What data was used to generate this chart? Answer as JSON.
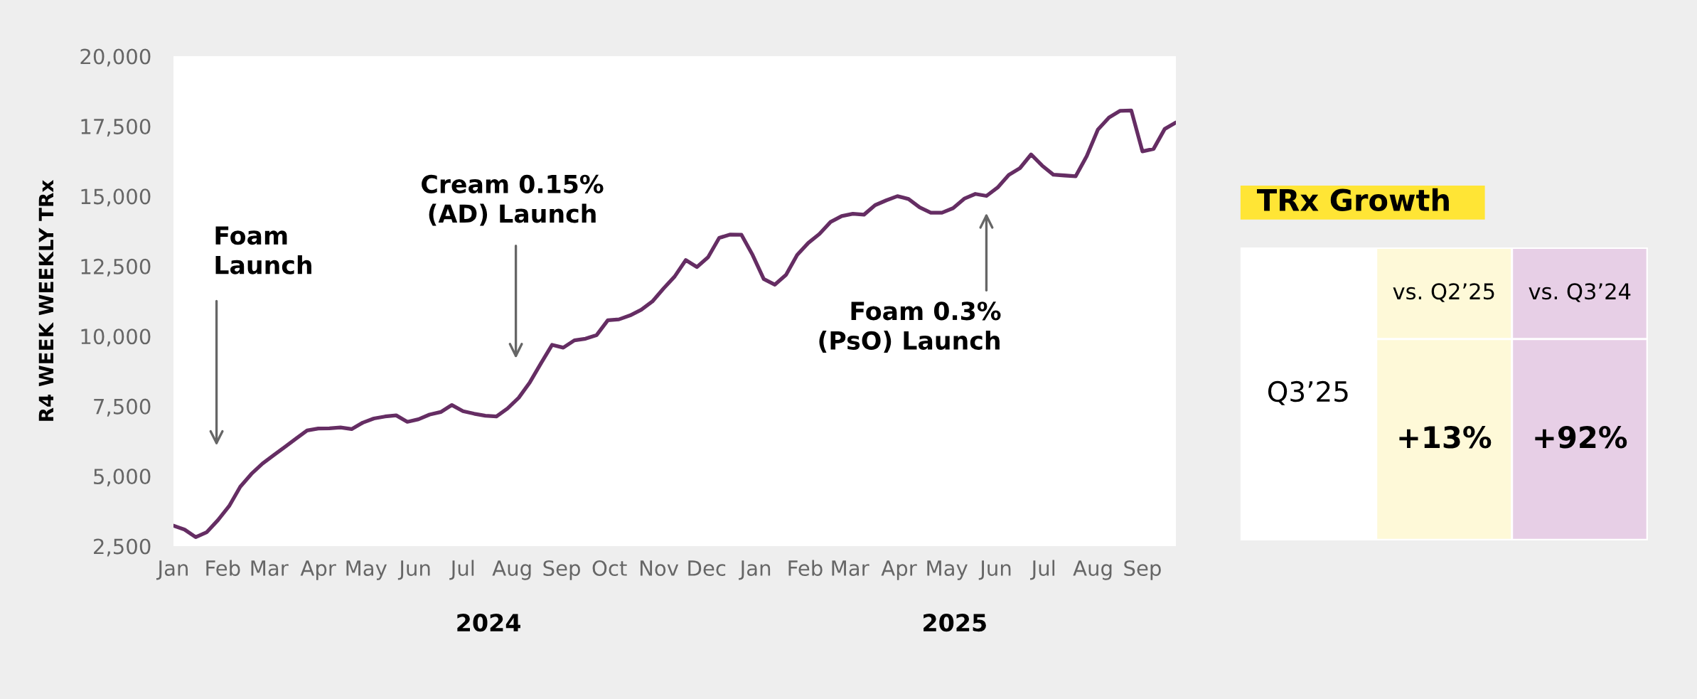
{
  "chart_data": [
    {
      "type": "line",
      "ylabel": "R4 WEEK WEEKLY TRx",
      "x": [
        "2024-01-01",
        "2024-01-08",
        "2024-01-15",
        "2024-01-22",
        "2024-01-29",
        "2024-02-05",
        "2024-02-12",
        "2024-02-19",
        "2024-02-26",
        "2024-03-04",
        "2024-03-11",
        "2024-03-18",
        "2024-03-25",
        "2024-04-01",
        "2024-04-08",
        "2024-04-15",
        "2024-04-22",
        "2024-04-29",
        "2024-05-06",
        "2024-05-13",
        "2024-05-20",
        "2024-05-27",
        "2024-06-03",
        "2024-06-10",
        "2024-06-17",
        "2024-06-24",
        "2024-07-01",
        "2024-07-08",
        "2024-07-15",
        "2024-07-22",
        "2024-07-29",
        "2024-08-05",
        "2024-08-12",
        "2024-08-19",
        "2024-08-26",
        "2024-09-02",
        "2024-09-09",
        "2024-09-16",
        "2024-09-23",
        "2024-09-30",
        "2024-10-07",
        "2024-10-14",
        "2024-10-21",
        "2024-10-28",
        "2024-11-04",
        "2024-11-11",
        "2024-11-18",
        "2024-11-25",
        "2024-12-02",
        "2024-12-09",
        "2024-12-16",
        "2024-12-23",
        "2024-12-30",
        "2025-01-06",
        "2025-01-13",
        "2025-01-20",
        "2025-01-27",
        "2025-02-03",
        "2025-02-10",
        "2025-02-17",
        "2025-02-24",
        "2025-03-03",
        "2025-03-10",
        "2025-03-17",
        "2025-03-24",
        "2025-03-31",
        "2025-04-07",
        "2025-04-14",
        "2025-04-21",
        "2025-04-28",
        "2025-05-05",
        "2025-05-12",
        "2025-05-19",
        "2025-05-26",
        "2025-06-02",
        "2025-06-09",
        "2025-06-16",
        "2025-06-23",
        "2025-06-30",
        "2025-07-07",
        "2025-07-14",
        "2025-07-21",
        "2025-07-28",
        "2025-08-04",
        "2025-08-11",
        "2025-08-18",
        "2025-08-25",
        "2025-09-01",
        "2025-09-08",
        "2025-09-15",
        "2025-09-22"
      ],
      "series": [
        {
          "color": "#652d63",
          "values": [
            3230,
            3090,
            2820,
            3000,
            3430,
            3930,
            4620,
            5080,
            5450,
            5750,
            6040,
            6340,
            6630,
            6700,
            6710,
            6740,
            6680,
            6910,
            7060,
            7130,
            7170,
            6940,
            7030,
            7200,
            7290,
            7540,
            7320,
            7230,
            7160,
            7130,
            7420,
            7800,
            8350,
            9030,
            9690,
            9590,
            9850,
            9910,
            10040,
            10570,
            10600,
            10740,
            10940,
            11240,
            11700,
            12130,
            12720,
            12470,
            12820,
            13510,
            13630,
            13620,
            12900,
            12040,
            11840,
            12190,
            12900,
            13330,
            13650,
            14080,
            14290,
            14370,
            14340,
            14680,
            14850,
            15000,
            14900,
            14600,
            14410,
            14410,
            14570,
            14910,
            15080,
            15010,
            15310,
            15760,
            16000,
            16490,
            16090,
            15770,
            15740,
            15710,
            16430,
            17380,
            17810,
            18050,
            18060,
            16600,
            16690,
            17400,
            17630
          ]
        }
      ],
      "xlim": [
        "2024-01-01",
        "2025-09-22"
      ],
      "ylim": [
        2500,
        20000
      ],
      "xticks": [
        {
          "value": "2024-01",
          "label": "Jan"
        },
        {
          "value": "2024-02",
          "label": "Feb"
        },
        {
          "value": "2024-03",
          "label": "Mar"
        },
        {
          "value": "2024-04",
          "label": "Apr"
        },
        {
          "value": "2024-05",
          "label": "May"
        },
        {
          "value": "2024-06",
          "label": "Jun"
        },
        {
          "value": "2024-07",
          "label": "Jul"
        },
        {
          "value": "2024-08",
          "label": "Aug"
        },
        {
          "value": "2024-09",
          "label": "Sep"
        },
        {
          "value": "2024-10",
          "label": "Oct"
        },
        {
          "value": "2024-11",
          "label": "Nov"
        },
        {
          "value": "2024-12",
          "label": "Dec"
        },
        {
          "value": "2025-01",
          "label": "Jan"
        },
        {
          "value": "2025-02",
          "label": "Feb"
        },
        {
          "value": "2025-03",
          "label": "Mar"
        },
        {
          "value": "2025-04",
          "label": "Apr"
        },
        {
          "value": "2025-05",
          "label": "May"
        },
        {
          "value": "2025-06",
          "label": "Jun"
        },
        {
          "value": "2025-07",
          "label": "Jul"
        },
        {
          "value": "2025-08",
          "label": "Aug"
        },
        {
          "value": "2025-09",
          "label": "Sep"
        }
      ],
      "yticks": [
        {
          "value": 2500,
          "label": "2,500"
        },
        {
          "value": 5000,
          "label": "5,000"
        },
        {
          "value": 7500,
          "label": "7,500"
        },
        {
          "value": 10000,
          "label": "10,000"
        },
        {
          "value": 12500,
          "label": "12,500"
        },
        {
          "value": 15000,
          "label": "15,000"
        },
        {
          "value": 17500,
          "label": "17,500"
        },
        {
          "value": 20000,
          "label": "20,000"
        }
      ],
      "x2lim": [
        "2024-01-01",
        "2025-09-22"
      ],
      "x2ticks": [
        {
          "value": "2024-07-17",
          "label": "2024"
        },
        {
          "value": "2025-05-06",
          "label": "2025"
        }
      ],
      "annotations": [
        "Foam\nLaunch",
        "Cream 0.15%\n(AD) Launch",
        "Foam 0.3%\n(PsO) Launch"
      ]
    },
    {
      "type": "other",
      "title": "TRx Growth",
      "y_categories": [
        "Q3’25"
      ],
      "categories": [
        "vs. Q2’25",
        "vs. Q3’24"
      ],
      "value_labels": [
        "+13%",
        "+92%"
      ],
      "colors": [
        "#fef9d8",
        "#e7cfe6"
      ]
    }
  ]
}
